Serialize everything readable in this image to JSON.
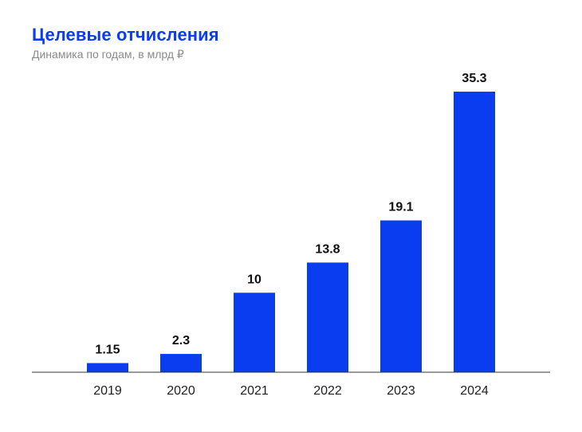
{
  "chart_data": {
    "type": "bar",
    "title": "Целевые отчисления",
    "subtitle": "Динамика по годам, в млрд ₽",
    "categories": [
      "2019",
      "2020",
      "2021",
      "2022",
      "2023",
      "2024"
    ],
    "values": [
      1.15,
      2.3,
      10,
      13.8,
      19.1,
      35.3
    ],
    "value_labels": [
      "1.15",
      "2.3",
      "10",
      "13.8",
      "19.1",
      "35.3"
    ],
    "xlabel": "",
    "ylabel": "",
    "ylim": [
      0,
      35.3
    ],
    "grid": false,
    "bar_color": "#0a3cf0",
    "axis_color": "#333333"
  }
}
